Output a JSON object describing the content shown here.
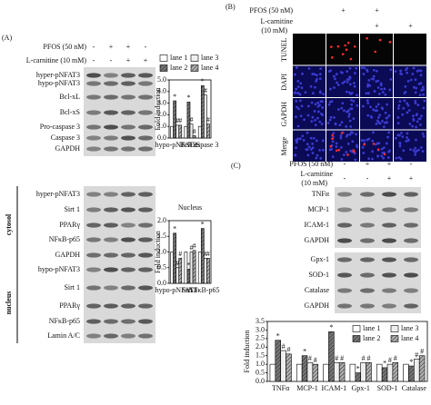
{
  "panel_a": {
    "label": "(A)",
    "treatments": [
      {
        "name": "PFOS (50 nM)",
        "signs": [
          "-",
          "+",
          "+",
          "-"
        ]
      },
      {
        "name": "L-carnitine (10 mM)",
        "signs": [
          "-",
          "-",
          "+",
          "+"
        ]
      }
    ],
    "blot_groups": [
      {
        "rows": [
          "hyper-pNFAT3",
          "hypo-pNFAT3",
          "Bcl-xL",
          "Bcl-xS",
          "Pro-caspase 3",
          "Caspase 3",
          "GAPDH"
        ]
      },
      {
        "label": "cytosol",
        "rows": [
          "hyper-pNFAT3",
          "Sirt 1",
          "PPARγ",
          "NFκB-p65",
          "GAPDH"
        ]
      },
      {
        "label": "nucleus",
        "rows": [
          "hypo-pNFAT3",
          "Sirt 1",
          "PPARγ",
          "NFκB-p65",
          "Lamin A/C"
        ]
      }
    ]
  },
  "panel_b": {
    "label": "(B)",
    "treatments": [
      {
        "name": "PFOS (50 nM)",
        "signs": [
          null,
          "+",
          "+",
          null
        ]
      },
      {
        "name": "L-carnitine",
        "unit": "(10 mM)",
        "signs": [
          null,
          null,
          "+",
          "+"
        ]
      }
    ],
    "rows": [
      "TUNEL",
      "DAPI",
      "GAPDH",
      "Merge"
    ]
  },
  "panel_c": {
    "label": "(C)",
    "treatments": [
      {
        "name": "PFOS (50 nM)",
        "signs": [
          "-",
          "+",
          "+",
          "-"
        ]
      },
      {
        "name": "L-carnitine",
        "unit": "(10 mM)",
        "signs": [
          "-",
          "-",
          "+",
          "+"
        ]
      }
    ],
    "blot_groups": [
      {
        "rows": [
          "TNFα",
          "MCP-1",
          "ICAM-1",
          "GAPDH"
        ]
      },
      {
        "rows": [
          "Gpx-1",
          "SOD-1",
          "Catalase",
          "GAPDH"
        ]
      }
    ]
  },
  "chart_data": [
    {
      "type": "bar",
      "ylabel": "Fold induction",
      "legend": true,
      "categories": [
        "hypo-pNFAT3",
        "Bcl-xS",
        "Caspase 3"
      ],
      "ylim": [
        0,
        5
      ],
      "yticks": [
        {
          "value": 0,
          "label": "0.0"
        },
        {
          "value": 1,
          "label": "1.0"
        },
        {
          "value": 2,
          "label": "2.0"
        },
        {
          "value": 3,
          "label": "3.0"
        },
        {
          "value": 4,
          "label": "4.0"
        },
        {
          "value": 5,
          "label": "5.0"
        }
      ],
      "series": [
        {
          "name": "lane 1",
          "color": "#ffffff",
          "values": [
            1.0,
            1.0,
            1.0
          ]
        },
        {
          "name": "lane 2",
          "color": "#777777",
          "hatch": true,
          "annotation": "*",
          "values": [
            3.2,
            3.1,
            4.5
          ]
        },
        {
          "name": "lane 3",
          "color": "#eeeeee",
          "annotation": "#",
          "values": [
            1.1,
            1.2,
            3.7
          ]
        },
        {
          "name": "lane 4",
          "color": "#b0b0b0",
          "hatch": true,
          "annotation": "#",
          "values": [
            1.1,
            0.2,
            1.2
          ]
        }
      ]
    },
    {
      "type": "bar",
      "title": "Nucleus",
      "ylabel": "Fold induction",
      "legend": false,
      "categories": [
        "hypo-pNFAT3",
        "Sirt 1",
        "NFκB-p65"
      ],
      "ylim": [
        0,
        2
      ],
      "yticks": [
        {
          "value": 0,
          "label": "0.0"
        },
        {
          "value": 0.5,
          "label": "0.5"
        },
        {
          "value": 1,
          "label": "1.0"
        },
        {
          "value": 1.5,
          "label": "1.5"
        },
        {
          "value": 2,
          "label": "2.0"
        }
      ],
      "series": [
        {
          "name": "lane 1",
          "color": "#ffffff",
          "values": [
            1.0,
            1.0,
            1.0
          ]
        },
        {
          "name": "lane 2",
          "color": "#777777",
          "hatch": true,
          "annotation": "*",
          "values": [
            1.6,
            0.45,
            1.75
          ]
        },
        {
          "name": "lane 3",
          "color": "#eeeeee",
          "annotation": "#",
          "values": [
            0.5,
            1.0,
            0.8
          ]
        },
        {
          "name": "lane 4",
          "color": "#b0b0b0",
          "hatch": true,
          "annotation": "#",
          "values": [
            0.8,
            1.05,
            0.8
          ]
        }
      ]
    },
    {
      "type": "bar",
      "ylabel": "Fold induction",
      "legend": true,
      "categories": [
        "TNFα",
        "MCP-1",
        "ICAM-1",
        "Gpx-1",
        "SOD-1",
        "Catalase"
      ],
      "ylim": [
        0,
        3.5
      ],
      "yticks": [
        {
          "value": 0,
          "label": "0.0"
        },
        {
          "value": 0.5,
          "label": "0.5"
        },
        {
          "value": 1,
          "label": "1.0"
        },
        {
          "value": 1.5,
          "label": "1.5"
        },
        {
          "value": 2,
          "label": "2.0"
        },
        {
          "value": 2.5,
          "label": "2.5"
        },
        {
          "value": 3,
          "label": "3.0"
        },
        {
          "value": 3.5,
          "label": "3.5"
        }
      ],
      "series": [
        {
          "name": "lane 1",
          "color": "#ffffff",
          "values": [
            1.0,
            1.0,
            1.0,
            1.0,
            1.0,
            1.0
          ]
        },
        {
          "name": "lane 2",
          "color": "#777777",
          "hatch": true,
          "annotation": "*",
          "values": [
            2.4,
            1.5,
            2.9,
            0.5,
            0.8,
            0.9
          ]
        },
        {
          "name": "lane 3",
          "color": "#eeeeee",
          "annotation": "#",
          "values": [
            1.8,
            1.1,
            1.1,
            1.1,
            1.0,
            1.3
          ]
        },
        {
          "name": "lane 4",
          "color": "#b0b0b0",
          "hatch": true,
          "annotation": "#",
          "values": [
            1.6,
            1.0,
            1.1,
            1.1,
            1.1,
            1.5
          ]
        }
      ]
    }
  ]
}
